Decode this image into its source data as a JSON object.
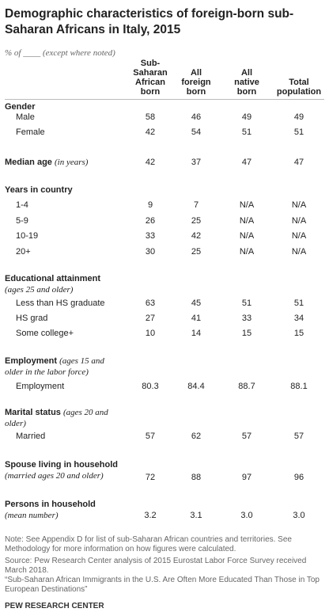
{
  "title": "Demographic characteristics of foreign-born sub-Saharan Africans in Italy, 2015",
  "subtitle": "% of ____ (except where noted)",
  "columns": [
    "Sub-Saharan African born",
    "All foreign born",
    "All native born",
    "Total population"
  ],
  "sections": [
    {
      "heading": "Gender",
      "rows": [
        {
          "label": "Male",
          "values": [
            "58",
            "46",
            "49",
            "49"
          ]
        },
        {
          "label": "Female",
          "values": [
            "42",
            "54",
            "51",
            "51"
          ]
        }
      ]
    },
    {
      "heading": "Median age",
      "note": "(in years)",
      "values": [
        "42",
        "37",
        "47",
        "47"
      ]
    },
    {
      "heading": "Years in country",
      "rows": [
        {
          "label": "1-4",
          "values": [
            "9",
            "7",
            "N/A",
            "N/A"
          ]
        },
        {
          "label": "5-9",
          "values": [
            "26",
            "25",
            "N/A",
            "N/A"
          ]
        },
        {
          "label": "10-19",
          "values": [
            "33",
            "42",
            "N/A",
            "N/A"
          ]
        },
        {
          "label": "20+",
          "values": [
            "30",
            "25",
            "N/A",
            "N/A"
          ]
        }
      ]
    },
    {
      "heading": "Educational attainment",
      "note": "(ages 25 and older)",
      "rows": [
        {
          "label": "Less than HS graduate",
          "values": [
            "63",
            "45",
            "51",
            "51"
          ]
        },
        {
          "label": "HS grad",
          "values": [
            "27",
            "41",
            "33",
            "34"
          ]
        },
        {
          "label": "Some college+",
          "values": [
            "10",
            "14",
            "15",
            "15"
          ]
        }
      ]
    },
    {
      "heading": "Employment",
      "note": "(ages 15 and older in the labor force)",
      "rows": [
        {
          "label": "Employment",
          "values": [
            "80.3",
            "84.4",
            "88.7",
            "88.1"
          ]
        }
      ]
    },
    {
      "heading": "Marital status",
      "note": "(ages 20 and older)",
      "rows": [
        {
          "label": "Married",
          "values": [
            "57",
            "62",
            "57",
            "57"
          ]
        }
      ]
    },
    {
      "heading": "Spouse living in household",
      "note": "(married ages 20 and older)",
      "values": [
        "72",
        "88",
        "97",
        "96"
      ]
    },
    {
      "heading": "Persons in household",
      "note": "(mean number)",
      "values": [
        "3.2",
        "3.1",
        "3.0",
        "3.0"
      ]
    }
  ],
  "notes": [
    "Note: See Appendix D for list of sub-Saharan African countries and territories. See Methodology for more information on how figures were calculated.",
    "Source: Pew Research Center analysis of 2015 Eurostat Labor Force Survey received March 2018.",
    "“Sub-Saharan African Immigrants in the U.S. Are Often More Educated Than Those in Top European Destinations”"
  ],
  "footer": "PEW RESEARCH CENTER"
}
